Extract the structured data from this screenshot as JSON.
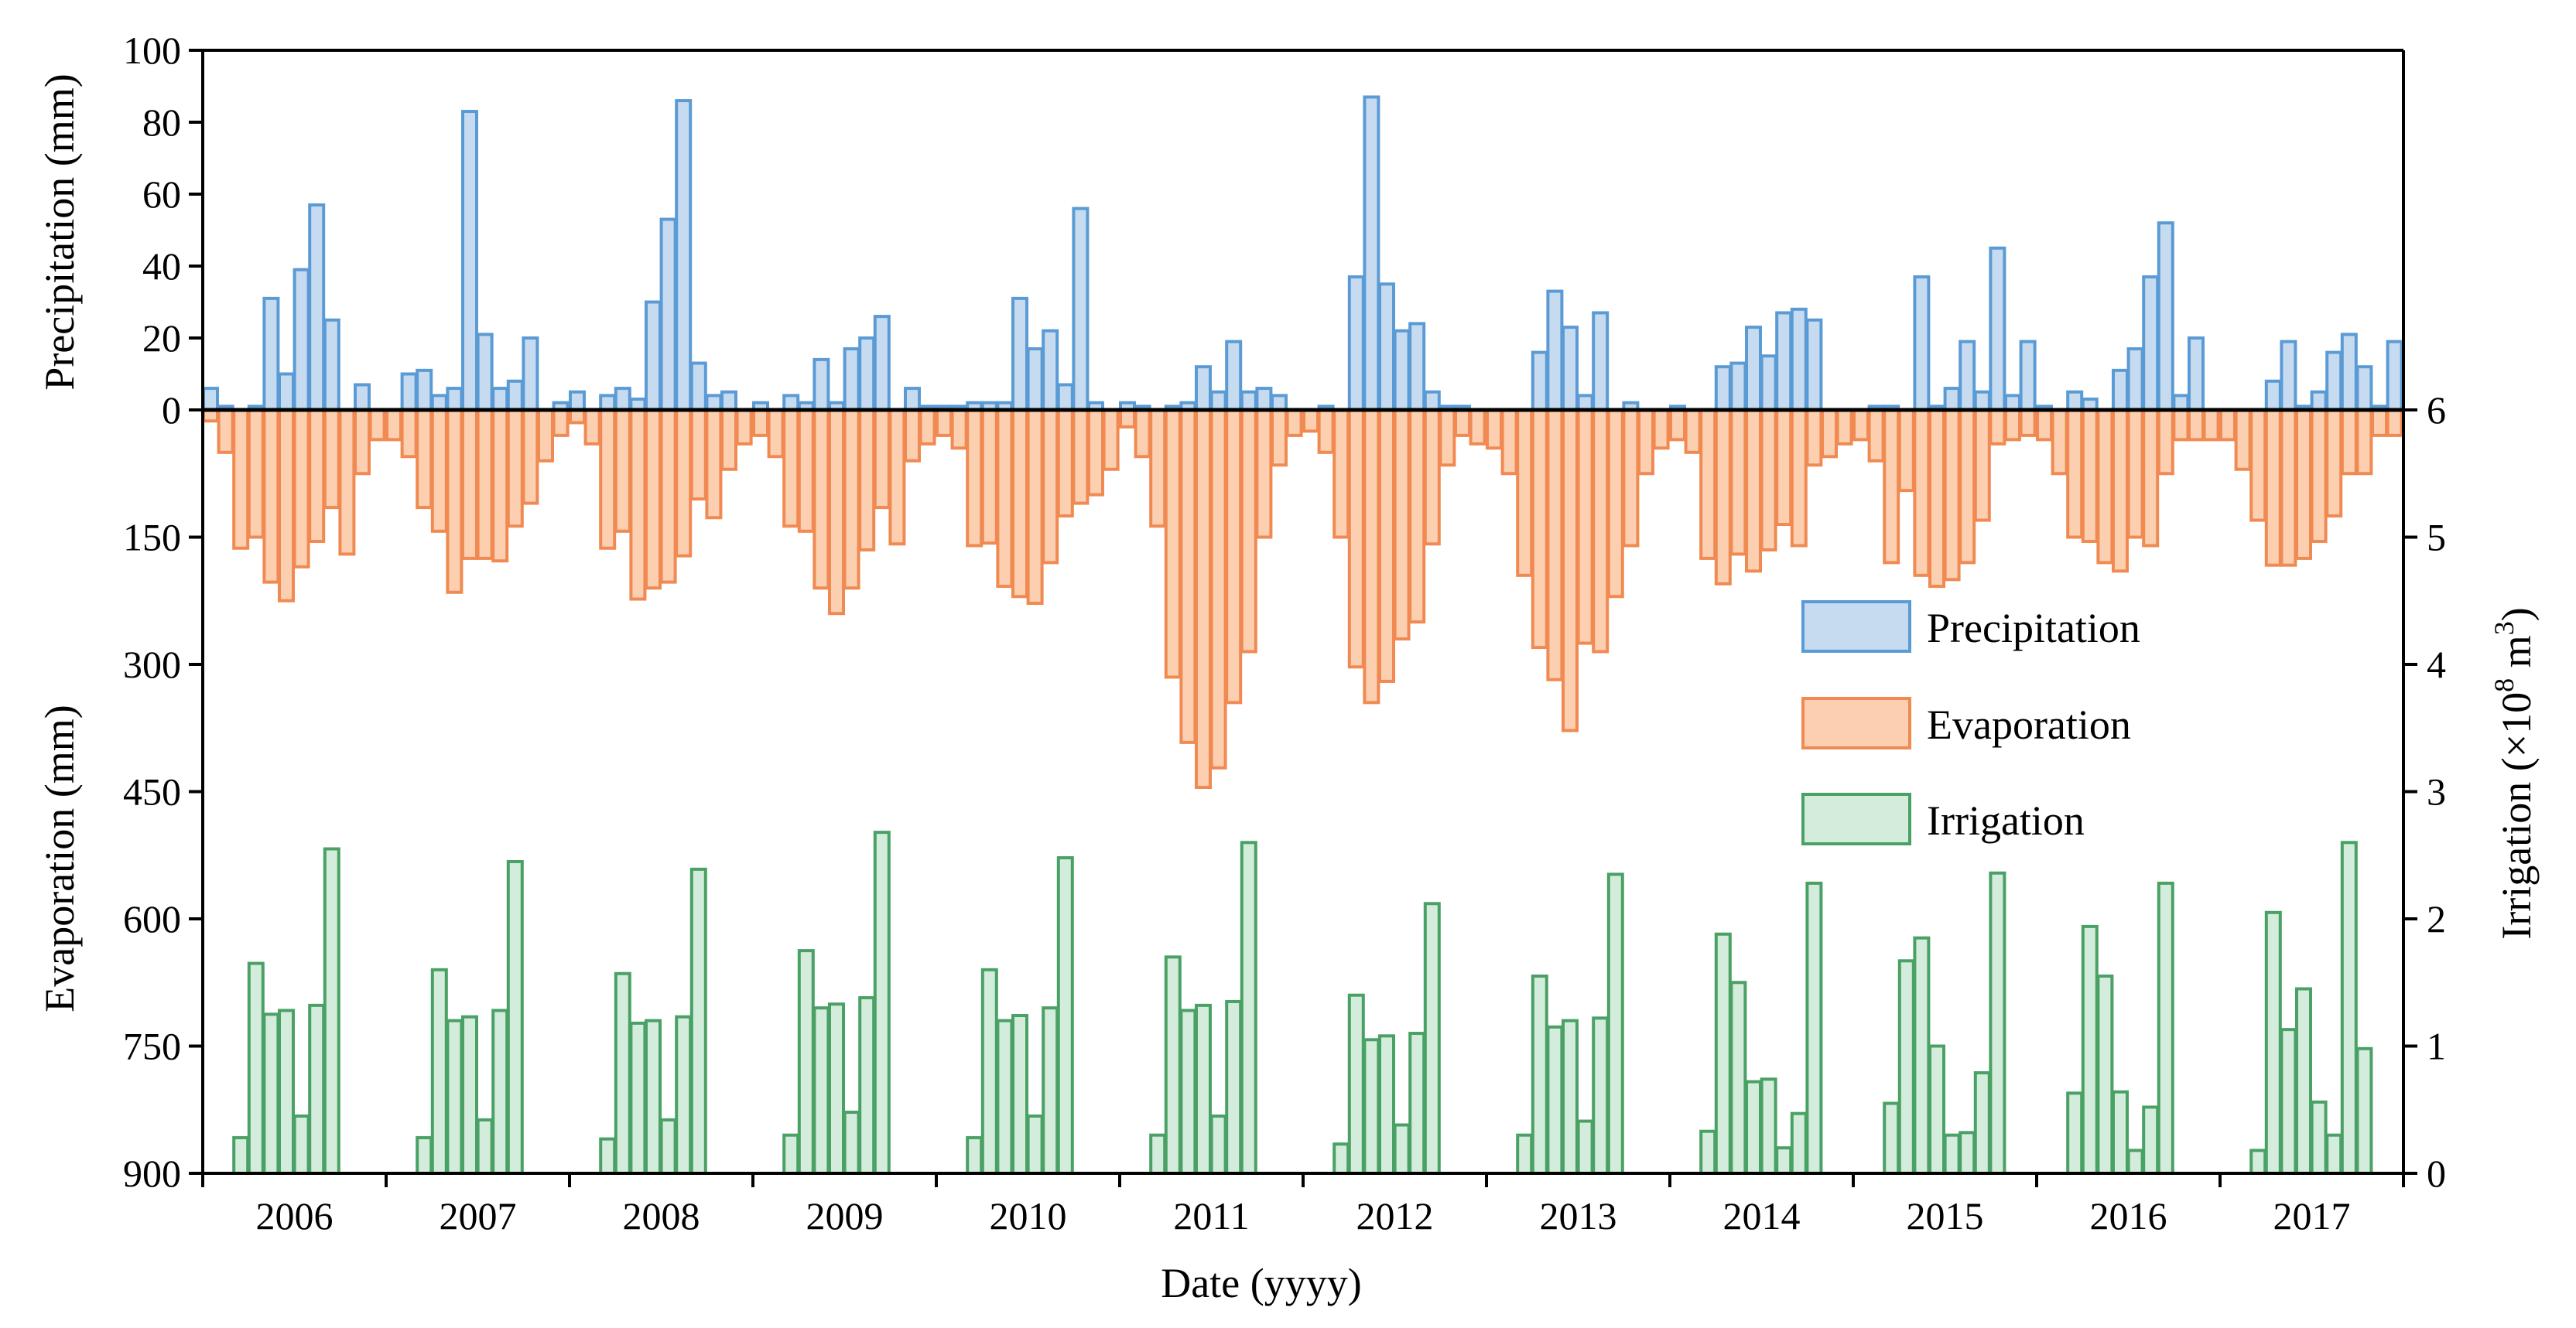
{
  "colors": {
    "precipitation_fill": "#c6dbf0",
    "precipitation_stroke": "#5b9bd5",
    "evaporation_fill": "#fbcfb0",
    "evaporation_stroke": "#f08a52",
    "irrigation_fill": "#d3ecdb",
    "irrigation_stroke": "#4aa165"
  },
  "chart_data": {
    "type": "bar",
    "xlabel": "Date (yyyy)",
    "years": [
      "2006",
      "2007",
      "2008",
      "2009",
      "2010",
      "2011",
      "2012",
      "2013",
      "2014",
      "2015",
      "2016",
      "2017"
    ],
    "grid": false,
    "legend": {
      "placement": "center-right",
      "entries": [
        "Precipitation",
        "Evaporation",
        "Irrigation"
      ]
    },
    "axes": {
      "precipitation": {
        "label": "Precipitation (mm)",
        "range": [
          0,
          100
        ],
        "ticks": [
          "0",
          "20",
          "40",
          "60",
          "80",
          "100"
        ]
      },
      "evaporation": {
        "label": "Evaporation (mm)",
        "range": [
          0,
          900
        ],
        "inverted": true,
        "ticks": [
          "150",
          "300",
          "450",
          "600",
          "750",
          "900"
        ]
      },
      "irrigation": {
        "label_main": "Irrigation (×10",
        "label_exp1": "8",
        "label_mid": " m",
        "label_exp2": "3",
        "label_end": ")",
        "range": [
          0,
          6
        ],
        "ticks": [
          "0",
          "1",
          "2",
          "3",
          "4",
          "5",
          "6"
        ]
      }
    },
    "series": [
      {
        "name": "Precipitation",
        "unit": "mm",
        "monthly_values": [
          [
            6,
            1,
            0,
            1,
            31,
            10,
            39,
            57,
            25,
            0,
            7,
            0
          ],
          [
            0,
            10,
            11,
            4,
            6,
            83,
            21,
            6,
            8,
            20,
            0,
            2
          ],
          [
            5,
            0,
            4,
            6,
            3,
            30,
            53,
            86,
            13,
            4,
            5,
            0
          ],
          [
            2,
            0,
            4,
            2,
            14,
            2,
            17,
            20,
            26,
            0,
            6,
            1
          ],
          [
            1,
            1,
            2,
            2,
            2,
            31,
            17,
            22,
            7,
            56,
            2,
            0
          ],
          [
            2,
            1,
            0,
            1,
            2,
            12,
            5,
            19,
            5,
            6,
            4,
            0
          ],
          [
            0,
            1,
            0,
            37,
            87,
            35,
            22,
            24,
            5,
            1,
            1,
            0
          ],
          [
            0,
            0,
            0,
            16,
            33,
            23,
            4,
            27,
            0,
            2,
            0,
            0
          ],
          [
            1,
            0,
            0,
            12,
            13,
            23,
            15,
            27,
            28,
            25,
            0,
            0
          ],
          [
            0,
            1,
            1,
            0,
            37,
            1,
            6,
            19,
            5,
            45,
            4,
            19
          ],
          [
            1,
            0,
            5,
            3,
            0,
            11,
            17,
            37,
            52,
            4,
            20,
            0
          ],
          [
            0,
            0,
            0,
            8,
            19,
            1,
            5,
            16,
            21,
            12,
            1,
            19
          ]
        ]
      },
      {
        "name": "Evaporation",
        "unit": "mm",
        "monthly_values": [
          [
            13,
            50,
            163,
            150,
            203,
            225,
            185,
            155,
            115,
            170,
            75,
            35
          ],
          [
            35,
            55,
            115,
            143,
            215,
            175,
            175,
            178,
            137,
            110,
            60,
            30
          ],
          [
            15,
            40,
            163,
            143,
            223,
            210,
            203,
            172,
            105,
            127,
            70,
            40
          ],
          [
            30,
            55,
            137,
            143,
            210,
            240,
            210,
            165,
            115,
            158,
            60,
            40
          ],
          [
            30,
            45,
            160,
            157,
            208,
            220,
            228,
            180,
            125,
            110,
            100,
            70
          ],
          [
            20,
            55,
            137,
            315,
            392,
            445,
            422,
            345,
            285,
            150,
            65,
            30
          ],
          [
            25,
            50,
            150,
            303,
            345,
            320,
            270,
            250,
            158,
            65,
            30,
            40
          ],
          [
            45,
            75,
            195,
            280,
            318,
            378,
            275,
            285,
            220,
            160,
            75,
            45
          ],
          [
            35,
            50,
            175,
            205,
            170,
            190,
            165,
            135,
            160,
            65,
            55,
            40
          ],
          [
            35,
            60,
            180,
            95,
            195,
            208,
            200,
            180,
            130,
            40,
            35,
            30
          ],
          [
            35,
            75,
            150,
            155,
            180,
            190,
            150,
            160,
            75,
            35,
            35,
            35
          ],
          [
            35,
            70,
            130,
            183,
            183,
            175,
            155,
            125,
            75,
            75,
            30,
            30
          ]
        ]
      },
      {
        "name": "Irrigation",
        "unit": "×10^8 m^3",
        "monthly_values": [
          [
            0.28,
            1.65,
            1.25,
            1.28,
            0.45,
            1.32,
            2.55
          ],
          [
            0.28,
            1.6,
            1.2,
            1.23,
            0.42,
            1.28,
            2.45
          ],
          [
            0.27,
            1.57,
            1.18,
            1.2,
            0.42,
            1.23,
            2.39
          ],
          [
            0.3,
            1.75,
            1.3,
            1.33,
            0.48,
            1.38,
            2.68
          ],
          [
            0.28,
            1.6,
            1.2,
            1.24,
            0.45,
            1.3,
            2.48
          ],
          [
            0.3,
            1.7,
            1.28,
            1.32,
            0.45,
            1.35,
            2.6
          ],
          [
            0.23,
            1.4,
            1.05,
            1.08,
            0.38,
            1.1,
            2.12
          ],
          [
            0.3,
            1.55,
            1.15,
            1.2,
            0.41,
            1.22,
            2.35
          ],
          [
            0.33,
            1.88,
            1.5,
            0.72,
            0.74,
            0.2,
            0.47,
            2.28
          ],
          [
            0.55,
            1.67,
            1.85,
            1.0,
            0.3,
            0.32,
            0.79,
            2.36
          ],
          [
            0.63,
            1.94,
            1.55,
            0.64,
            0.18,
            0.52,
            2.28
          ],
          [
            0.18,
            2.05,
            1.13,
            1.45,
            0.56,
            0.3,
            2.6,
            0.98
          ]
        ]
      }
    ]
  }
}
